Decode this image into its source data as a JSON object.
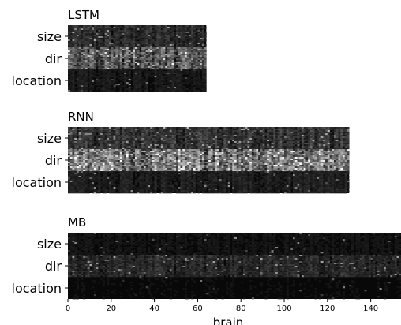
{
  "chart_data": {
    "type": "heatmap",
    "colormap": "gray",
    "rows": [
      "size",
      "dir",
      "location"
    ],
    "panels": [
      {
        "title": "LSTM",
        "n_columns": 64,
        "row_activity": {
          "size": 0.25,
          "dir": 0.55,
          "location": 0.12
        },
        "row_detail": [
          {
            "band": "size",
            "mean_intensity": 0.25
          },
          {
            "band": "dir",
            "mean_intensity": 0.55
          },
          {
            "band": "location",
            "mean_intensity": 0.12
          }
        ]
      },
      {
        "title": "RNN",
        "n_columns": 130,
        "row_activity": {
          "size": 0.3,
          "dir": 0.75,
          "location": 0.15
        }
      },
      {
        "title": "MB",
        "n_columns": 154,
        "row_activity": {
          "size": 0.08,
          "dir": 0.22,
          "location": 0.05
        }
      }
    ],
    "xlabel": "brain",
    "x_ticks": [
      "0",
      "20",
      "40",
      "60",
      "80",
      "100",
      "120",
      "140"
    ],
    "xlim": [
      0,
      154
    ]
  }
}
